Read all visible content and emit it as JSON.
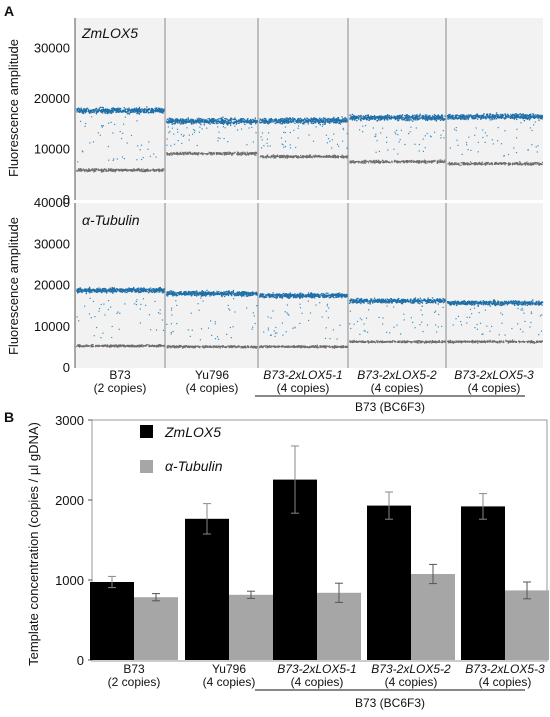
{
  "panel_a": {
    "label": "A",
    "ylabel": "Fluorescence amplitude",
    "colors": {
      "positive": "#1f6fa8",
      "negative": "#6d6d6d",
      "background": "#f2f2f2"
    },
    "samples": [
      {
        "name": "B73",
        "copies": "(2 copies)",
        "italic": false
      },
      {
        "name": "Yu796",
        "copies": "(4 copies)",
        "italic": false
      },
      {
        "name": "B73-2xLOX5-1",
        "copies": "(4 copies)",
        "italic": true
      },
      {
        "name": "B73-2xLOX5-2",
        "copies": "(4 copies)",
        "italic": true
      },
      {
        "name": "B73-2xLOX5-3",
        "copies": "(4 copies)",
        "italic": true
      }
    ],
    "group_label": "B73 (BC6F3)",
    "subpanels": [
      {
        "title": "ZmLOX5",
        "ylim": [
          0,
          36000
        ],
        "yticks": [
          "0",
          "10000",
          "20000",
          "30000"
        ],
        "ytick_values": [
          0,
          10000,
          20000,
          30000
        ],
        "positive_levels": [
          17800,
          15700,
          15800,
          16400,
          16600
        ],
        "negative_levels": [
          6000,
          9300,
          8700,
          7700,
          7300
        ]
      },
      {
        "title": "α-Tubulin",
        "ylim": [
          0,
          40000
        ],
        "yticks": [
          "0",
          "10000",
          "20000",
          "30000",
          "40000"
        ],
        "ytick_values": [
          0,
          10000,
          20000,
          30000,
          40000
        ],
        "positive_levels": [
          19000,
          18200,
          17700,
          16400,
          15900
        ],
        "negative_levels": [
          5500,
          5300,
          5300,
          6500,
          6500
        ]
      }
    ]
  },
  "chart_data": {
    "type": "bar",
    "label": "B",
    "ylabel": "Template  concentration  (copies / µl gDNA)",
    "ylim": [
      0,
      3000
    ],
    "yticks": [
      "0",
      "1000",
      "2000",
      "3000"
    ],
    "ytick_values": [
      0,
      1000,
      2000,
      3000
    ],
    "categories": [
      "B73",
      "Yu796",
      "B73-2xLOX5-1",
      "B73-2xLOX5-2",
      "B73-2xLOX5-3"
    ],
    "category_sub": [
      "(2 copies)",
      "(4 copies)",
      "(4 copies)",
      "(4 copies)",
      "(4 copies)"
    ],
    "category_italic": [
      false,
      false,
      true,
      true,
      true
    ],
    "group_label": "B73 (BC6F3)",
    "legend_position": "top-left",
    "series": [
      {
        "name": "ZmLOX5",
        "color": "#000000",
        "values": [
          975,
          1765,
          2255,
          1930,
          1920
        ],
        "errors": [
          70,
          190,
          420,
          170,
          160
        ]
      },
      {
        "name": "α-Tubulin",
        "color": "#a6a6a6",
        "values": [
          785,
          815,
          840,
          1075,
          870
        ],
        "errors": [
          45,
          45,
          120,
          120,
          105
        ]
      }
    ]
  }
}
